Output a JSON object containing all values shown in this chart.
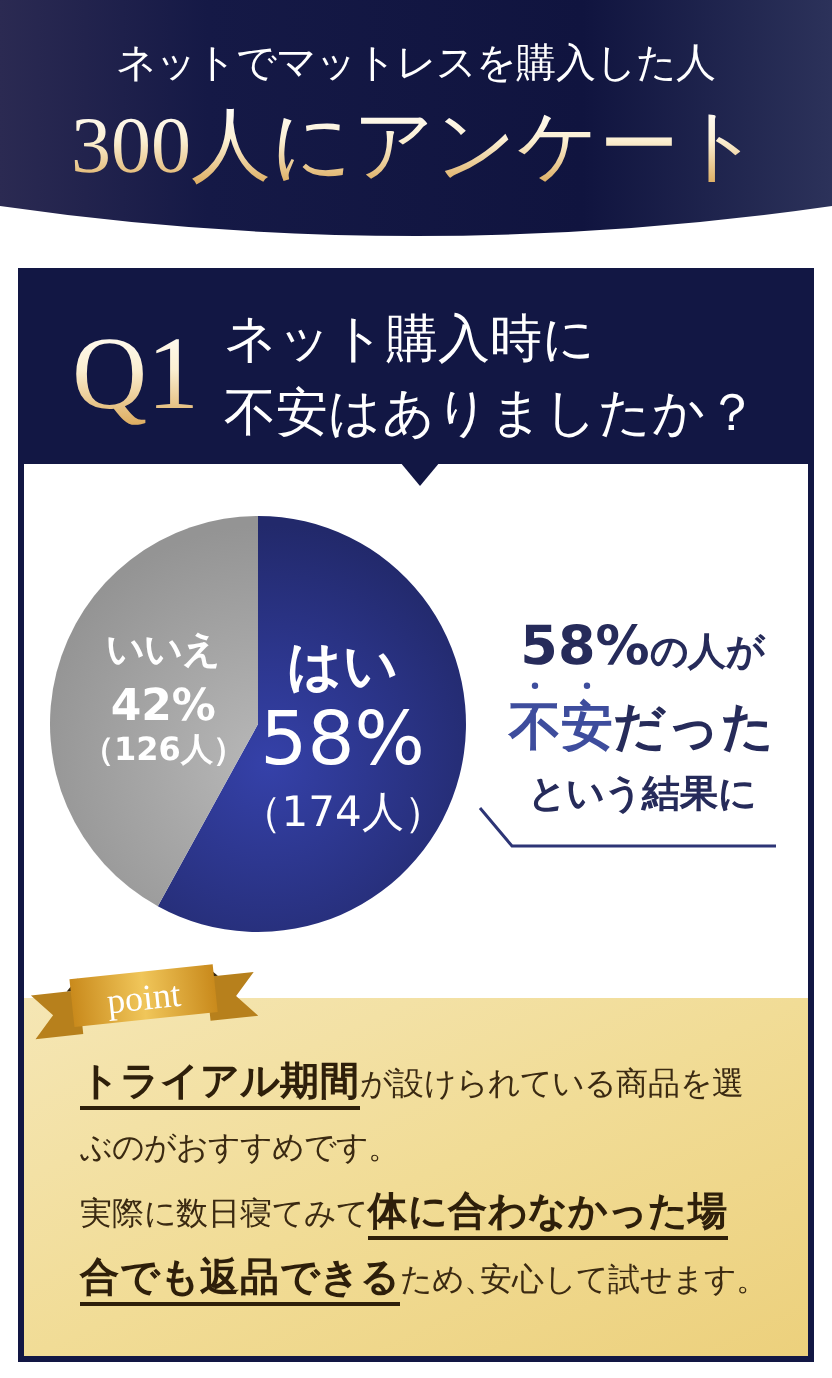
{
  "chart_data": {
    "type": "pie",
    "title": "ネットでマットレスを購入した人",
    "subtitle": "300人にアンケート",
    "categories": [
      "はい",
      "いいえ"
    ],
    "values": [
      58,
      42
    ],
    "colors": [
      "#2a3385",
      "#a3a3a3"
    ],
    "value_labels": [
      "58%",
      "42%"
    ],
    "annotations": [
      "Q1",
      "ネット購入時に",
      "不安はありましたか？",
      "（174人）",
      "（126人）",
      "**58%**の人が",
      "**不安**だった",
      "という結果に",
      "point",
      "**トライアル期間**が設けられている商品を選ぶのがおすすめです。",
      "実際に数日寝てみて**体に合わなかった場合でも返品できる**ため、安心して試せます。"
    ]
  }
}
